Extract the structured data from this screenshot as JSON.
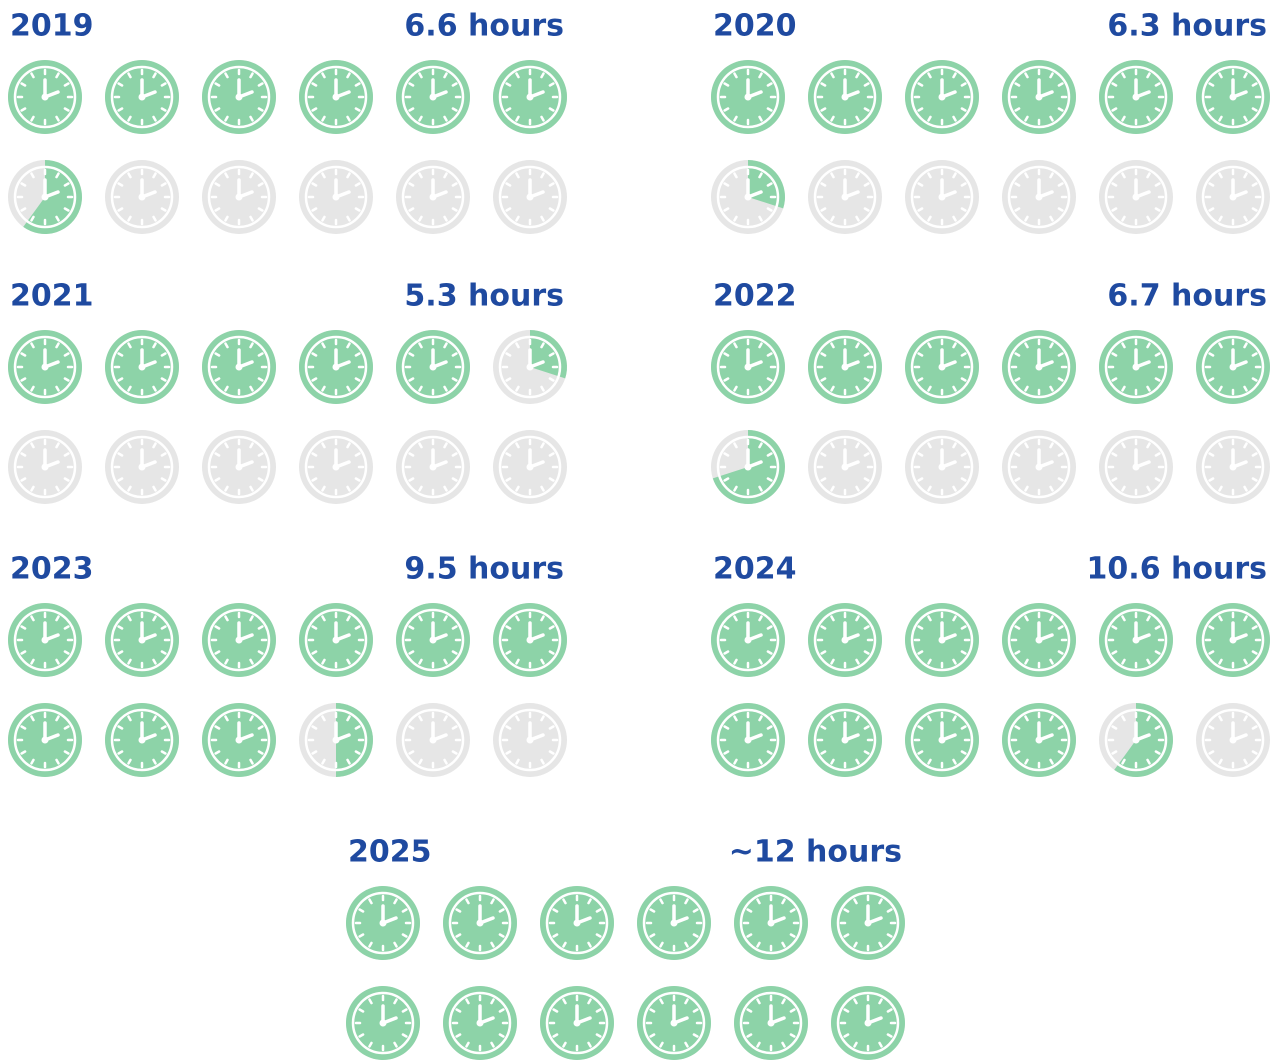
{
  "chart_data": {
    "type": "pictogram",
    "categories": [
      "2019",
      "2020",
      "2021",
      "2022",
      "2023",
      "2024",
      "2025"
    ],
    "values": [
      6.6,
      6.3,
      5.3,
      6.7,
      9.5,
      10.6,
      12
    ],
    "value_labels": [
      "6.6 hours",
      "6.3 hours",
      "5.3 hours",
      "6.7 hours",
      "9.5 hours",
      "10.6 hours",
      "~12 hours"
    ],
    "ylim": [
      0,
      12
    ],
    "color": "#8dd3a8",
    "empty_color": "#e6e6e6",
    "text_color": "#1f4aa0"
  }
}
